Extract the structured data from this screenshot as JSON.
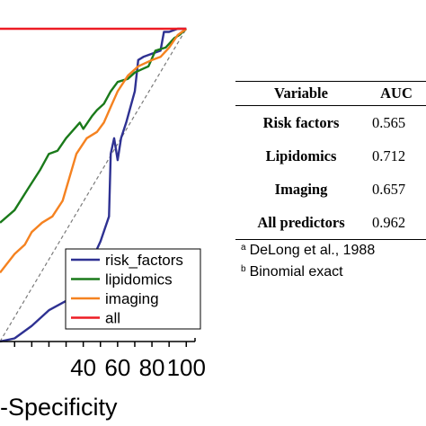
{
  "chart_data": {
    "type": "line",
    "xlabel": "-Specificity",
    "ylabel": "",
    "xlim": [
      -8.5,
      103
    ],
    "ylim": [
      0,
      100
    ],
    "x_ticks": [
      "40",
      "60",
      "80",
      "100"
    ],
    "diagonal_reference": true,
    "legend_position": "bottom-right",
    "series": [
      {
        "name": "risk_factors",
        "color": "#2e3192",
        "x": [
          -8.5,
          0,
          10,
          20,
          30,
          35,
          40,
          45,
          50,
          55,
          56,
          58,
          60,
          62,
          65,
          70,
          72,
          75,
          80,
          85,
          87,
          90,
          95,
          100
        ],
        "y": [
          0,
          1,
          5,
          10,
          13,
          15,
          22,
          26,
          32,
          40,
          60,
          65,
          58,
          65,
          70,
          80,
          90,
          91,
          92,
          93,
          99,
          99,
          100,
          100
        ]
      },
      {
        "name": "lipidomics",
        "color": "#1a7a1a",
        "x": [
          -8.5,
          0,
          8,
          15,
          20,
          25,
          30,
          38,
          40,
          45,
          48,
          52,
          56,
          60,
          66,
          70,
          74,
          78,
          82,
          88,
          93,
          96,
          100
        ],
        "y": [
          38,
          42,
          49,
          55,
          60,
          61,
          65,
          70,
          68,
          72,
          74,
          76,
          80,
          83,
          84,
          86,
          87,
          88,
          93,
          94,
          97,
          98,
          100
        ]
      },
      {
        "name": "imaging",
        "color": "#f58220",
        "x": [
          -8.5,
          0,
          6,
          10,
          16,
          22,
          28,
          36,
          42,
          48,
          52,
          56,
          60,
          66,
          72,
          76,
          80,
          85,
          90,
          95,
          100
        ],
        "y": [
          22,
          28,
          31,
          35,
          38,
          40,
          45,
          60,
          65,
          67,
          70,
          75,
          80,
          85,
          88,
          89,
          90,
          91,
          94,
          98,
          100
        ]
      },
      {
        "name": "all",
        "color": "#ed1c24",
        "x": [
          -8.5,
          100
        ],
        "y": [
          100,
          100
        ]
      }
    ]
  },
  "table": {
    "headers": [
      "Variable",
      "AUC"
    ],
    "rows": [
      {
        "variable": "Risk factors",
        "auc": "0.565"
      },
      {
        "variable": "Lipidomics",
        "auc": "0.712"
      },
      {
        "variable": "Imaging",
        "auc": "0.657"
      },
      {
        "variable": "All predictors",
        "auc": "0.962"
      }
    ],
    "footnotes": [
      {
        "mark": "a",
        "text": "DeLong  et al., 1988"
      },
      {
        "mark": "b",
        "text": "Binomial  exact"
      }
    ]
  }
}
